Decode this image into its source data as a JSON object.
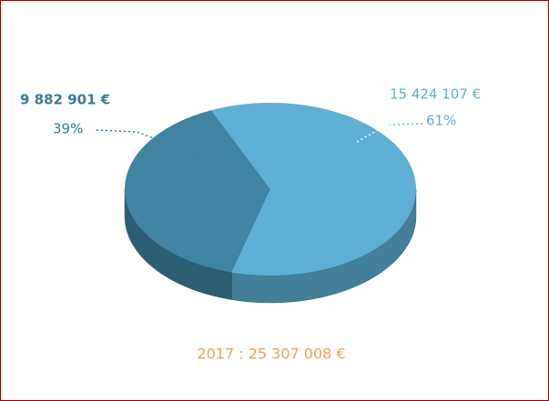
{
  "chart_data": {
    "type": "pie",
    "categories": [
      null,
      null
    ],
    "values": [
      9882901,
      15424107
    ],
    "value_labels": [
      "9 882 901 €",
      "15 424 107 €"
    ],
    "percentages": [
      39,
      61
    ],
    "percentage_labels": [
      "39%",
      "61%"
    ],
    "colors": [
      "#3f84a1",
      "#5db0d3"
    ],
    "caption": "2017 : 25 307 008 €"
  }
}
